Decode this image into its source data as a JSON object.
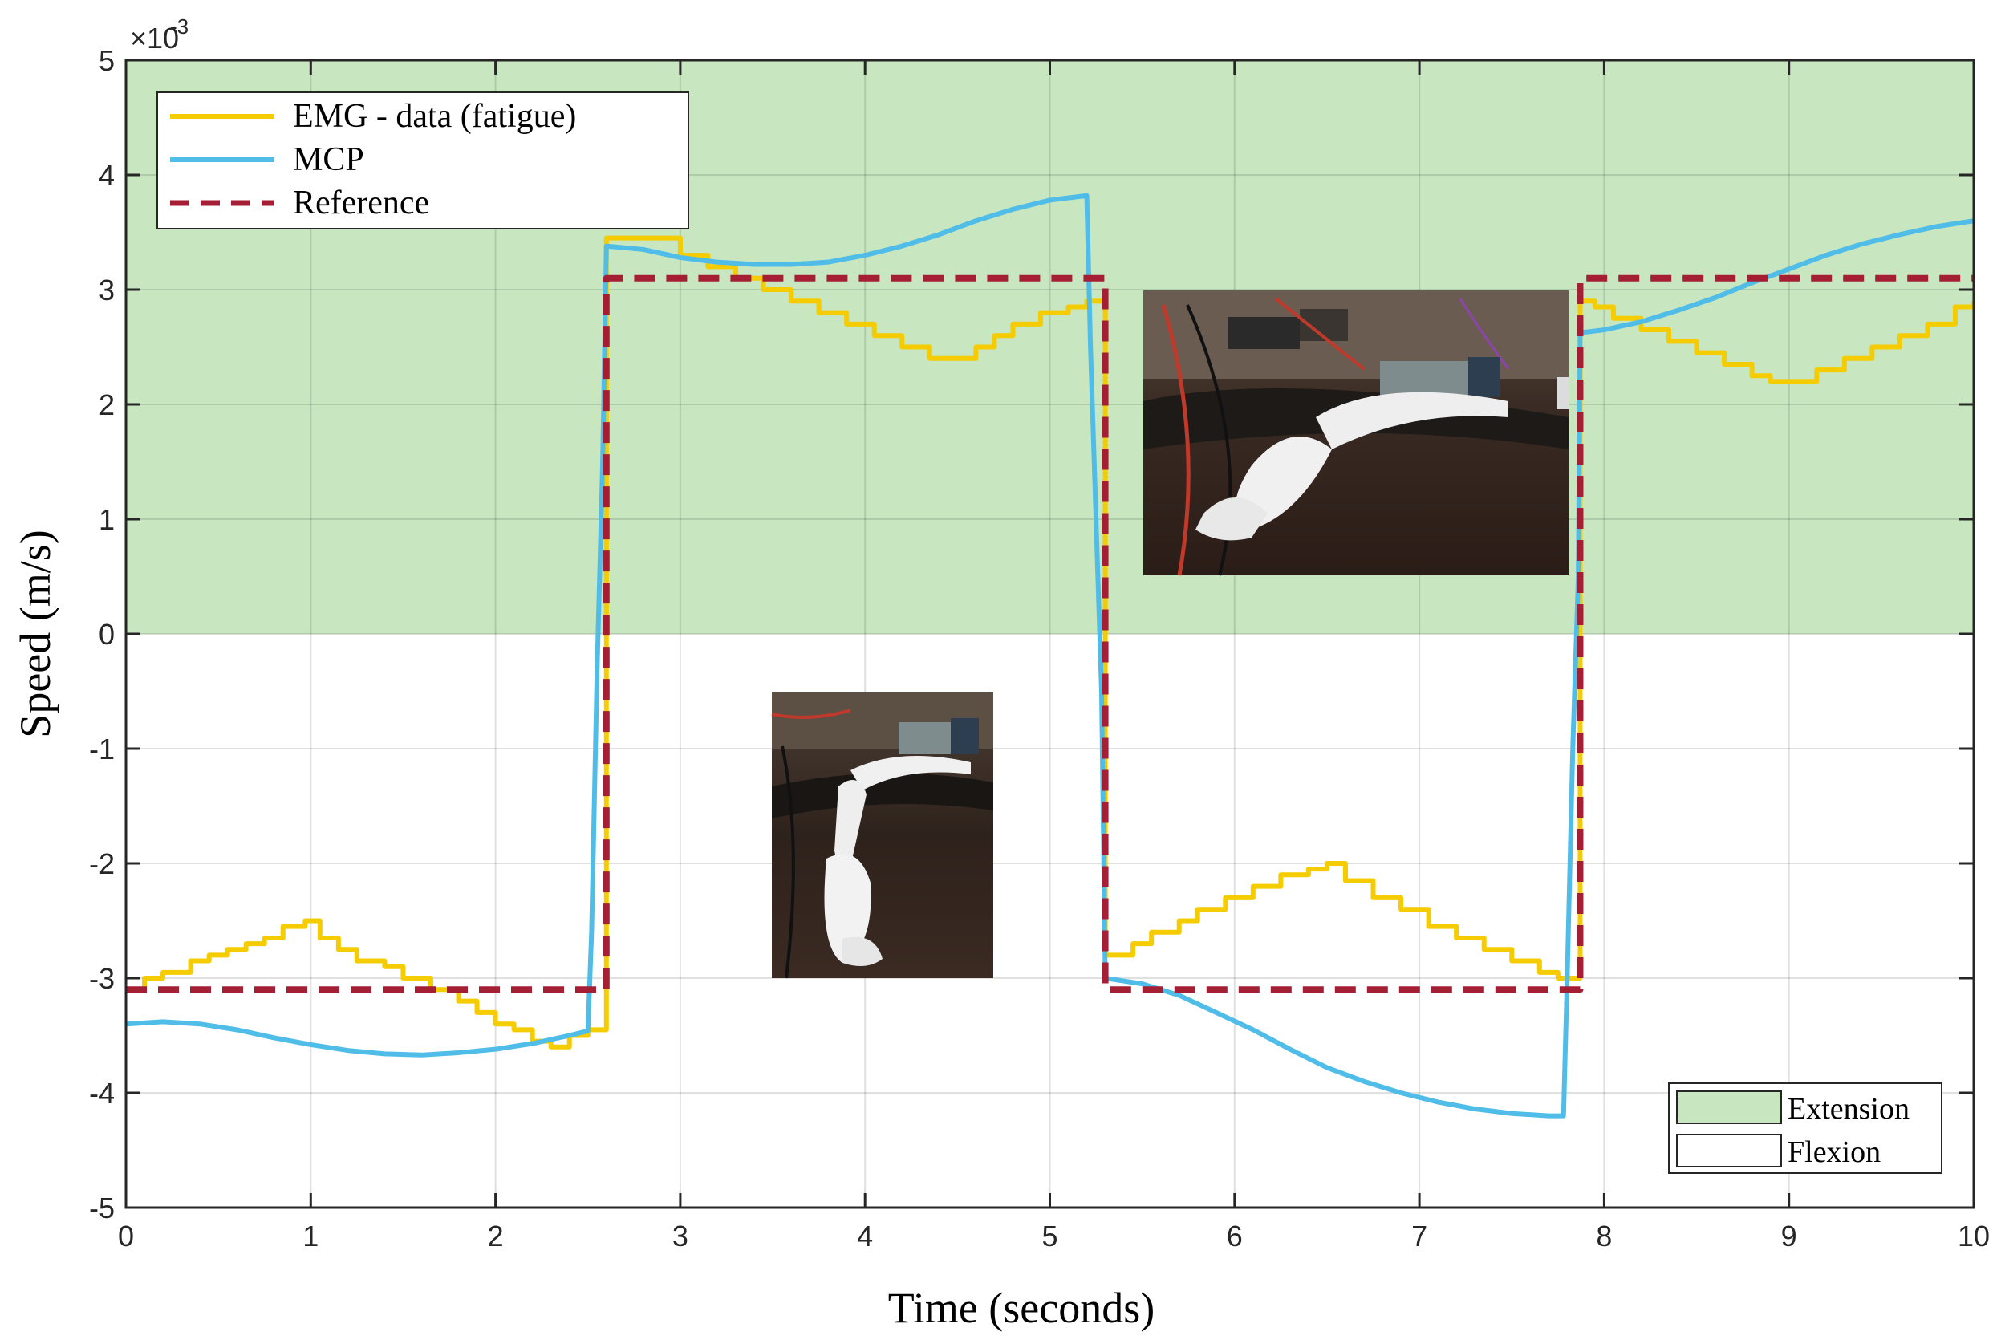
{
  "chart_data": {
    "type": "line",
    "xlabel": "Time (seconds)",
    "ylabel": "Speed (m/s)",
    "y_exponent_label": "×10",
    "y_exponent_power": "-3",
    "xlim": [
      0,
      10
    ],
    "ylim": [
      -5,
      5
    ],
    "x_ticks": [
      "0",
      "1",
      "2",
      "3",
      "4",
      "5",
      "6",
      "7",
      "8",
      "9",
      "10"
    ],
    "y_ticks": [
      "-5",
      "-4",
      "-3",
      "-2",
      "-1",
      "0",
      "1",
      "2",
      "3",
      "4",
      "5"
    ],
    "grid": true,
    "legend_position": "top-left",
    "region_legend_position": "bottom-right",
    "regions": [
      {
        "name": "Extension",
        "y_range": [
          0,
          5
        ],
        "color": "#c8e6c0"
      },
      {
        "name": "Flexion",
        "y_range": [
          -5,
          0
        ],
        "color": "#ffffff"
      }
    ],
    "series": [
      {
        "name": "EMG - data (fatigue)",
        "color": "#f5cc00",
        "style": "step",
        "x": [
          0,
          0.1,
          0.2,
          0.35,
          0.45,
          0.55,
          0.65,
          0.75,
          0.85,
          0.97,
          1.05,
          1.15,
          1.25,
          1.4,
          1.5,
          1.65,
          1.8,
          1.9,
          2.0,
          2.1,
          2.2,
          2.3,
          2.4,
          2.5,
          2.58,
          2.6,
          2.7,
          2.9,
          3.0,
          3.15,
          3.3,
          3.45,
          3.6,
          3.75,
          3.9,
          4.05,
          4.2,
          4.35,
          4.5,
          4.6,
          4.7,
          4.8,
          4.95,
          5.1,
          5.2,
          5.27,
          5.3,
          5.45,
          5.55,
          5.7,
          5.8,
          5.95,
          6.1,
          6.25,
          6.4,
          6.5,
          6.6,
          6.75,
          6.9,
          7.05,
          7.2,
          7.35,
          7.5,
          7.65,
          7.75,
          7.85,
          7.87,
          7.95,
          8.05,
          8.2,
          8.35,
          8.5,
          8.65,
          8.8,
          8.9,
          9.0,
          9.15,
          9.3,
          9.45,
          9.6,
          9.75,
          9.9,
          10.0
        ],
        "y": [
          -3.1,
          -3.0,
          -2.95,
          -2.85,
          -2.8,
          -2.75,
          -2.7,
          -2.65,
          -2.55,
          -2.5,
          -2.65,
          -2.75,
          -2.85,
          -2.9,
          -3.0,
          -3.1,
          -3.2,
          -3.3,
          -3.4,
          -3.45,
          -3.55,
          -3.6,
          -3.5,
          -3.45,
          -3.45,
          3.45,
          3.45,
          3.45,
          3.3,
          3.2,
          3.1,
          3.0,
          2.9,
          2.8,
          2.7,
          2.6,
          2.5,
          2.4,
          2.4,
          2.5,
          2.6,
          2.7,
          2.8,
          2.85,
          2.9,
          2.9,
          -2.8,
          -2.7,
          -2.6,
          -2.5,
          -2.4,
          -2.3,
          -2.2,
          -2.1,
          -2.05,
          -2.0,
          -2.15,
          -2.3,
          -2.4,
          -2.55,
          -2.65,
          -2.75,
          -2.85,
          -2.95,
          -3.0,
          -3.0,
          2.9,
          2.85,
          2.75,
          2.65,
          2.55,
          2.45,
          2.35,
          2.25,
          2.2,
          2.2,
          2.3,
          2.4,
          2.5,
          2.6,
          2.7,
          2.85,
          2.9
        ]
      },
      {
        "name": "MCP",
        "color": "#4fbde8",
        "style": "line",
        "x": [
          0,
          0.2,
          0.4,
          0.6,
          0.8,
          1.0,
          1.2,
          1.4,
          1.6,
          1.8,
          2.0,
          2.2,
          2.4,
          2.5,
          2.52,
          2.55,
          2.58,
          2.6,
          2.8,
          3.0,
          3.2,
          3.4,
          3.6,
          3.8,
          4.0,
          4.2,
          4.4,
          4.6,
          4.8,
          5.0,
          5.1,
          5.2,
          5.22,
          5.25,
          5.28,
          5.3,
          5.5,
          5.7,
          5.9,
          6.1,
          6.3,
          6.5,
          6.7,
          6.9,
          7.1,
          7.3,
          7.5,
          7.7,
          7.78,
          7.8,
          7.83,
          7.86,
          7.87,
          7.9,
          8.0,
          8.2,
          8.4,
          8.6,
          8.8,
          9.0,
          9.2,
          9.4,
          9.6,
          9.8,
          10.0
        ],
        "y": [
          -3.4,
          -3.38,
          -3.4,
          -3.45,
          -3.52,
          -3.58,
          -3.63,
          -3.66,
          -3.67,
          -3.65,
          -3.62,
          -3.57,
          -3.5,
          -3.46,
          -2.6,
          -0.3,
          1.5,
          3.38,
          3.35,
          3.28,
          3.24,
          3.22,
          3.22,
          3.24,
          3.3,
          3.38,
          3.48,
          3.6,
          3.7,
          3.78,
          3.8,
          3.82,
          2.5,
          1.0,
          -0.5,
          -3.0,
          -3.05,
          -3.15,
          -3.3,
          -3.45,
          -3.62,
          -3.78,
          -3.9,
          -4.0,
          -4.08,
          -4.14,
          -4.18,
          -4.2,
          -4.2,
          -3.0,
          -1.0,
          0.5,
          2.63,
          2.63,
          2.65,
          2.72,
          2.82,
          2.93,
          3.06,
          3.18,
          3.3,
          3.4,
          3.48,
          3.55,
          3.6
        ]
      },
      {
        "name": "Reference",
        "color": "#a41e34",
        "style": "dashed-step",
        "x": [
          0,
          2.6,
          2.6,
          5.3,
          5.3,
          7.87,
          7.87,
          10.0
        ],
        "y": [
          -3.1,
          -3.1,
          3.1,
          3.1,
          -3.1,
          -3.1,
          3.1,
          3.1
        ]
      }
    ]
  }
}
